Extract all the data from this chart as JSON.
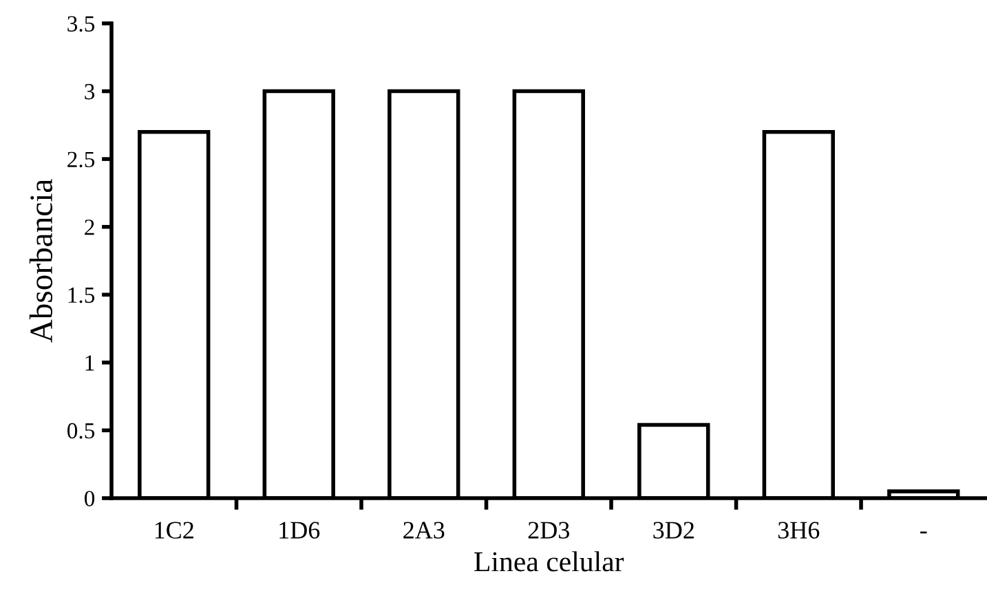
{
  "chart_data": {
    "type": "bar",
    "xlabel": "Linea celular",
    "ylabel": "Absorbancia",
    "categories": [
      "1C2",
      "1D6",
      "2A3",
      "2D3",
      "3D2",
      "3H6",
      "-"
    ],
    "values": [
      2.7,
      3.0,
      3.0,
      3.0,
      0.54,
      2.7,
      0.05
    ],
    "color": "#ffffff",
    "ylim": [
      0,
      3.5
    ],
    "yticks": [
      0,
      0.5,
      1,
      {
        "value": 1.5,
        "label": "1.5"
      },
      2,
      {
        "value": 2.5,
        "label": "2.5"
      },
      3,
      {
        "value": 3.5,
        "label": "3.5"
      }
    ],
    "grid": false,
    "legend": false
  }
}
